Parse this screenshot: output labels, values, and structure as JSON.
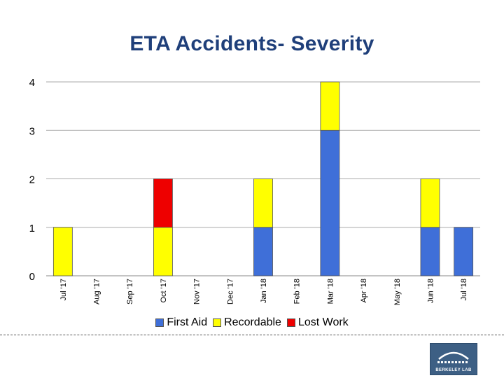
{
  "chart_data": {
    "type": "bar",
    "stacked": true,
    "title": "ETA Accidents- Severity",
    "categories": [
      "Jul '17",
      "Aug '17",
      "Sep '17",
      "Oct '17",
      "Nov '17",
      "Dec '17",
      "Jan '18",
      "Feb '18",
      "Mar '18",
      "Apr '18",
      "May '18",
      "Jun '18",
      "Jul '18"
    ],
    "series": [
      {
        "name": "First Aid",
        "color": "#3f6fd8",
        "values": [
          0,
          0,
          0,
          0,
          0,
          0,
          1,
          0,
          3,
          0,
          0,
          1,
          1
        ]
      },
      {
        "name": "Recordable",
        "color": "#ffff00",
        "values": [
          1,
          0,
          0,
          1,
          0,
          0,
          1,
          0,
          1,
          0,
          0,
          1,
          0
        ]
      },
      {
        "name": "Lost Work",
        "color": "#ee0000",
        "values": [
          0,
          0,
          0,
          1,
          0,
          0,
          0,
          0,
          0,
          0,
          0,
          0,
          0
        ]
      }
    ],
    "yticks": [
      0,
      1,
      2,
      3,
      4
    ],
    "ylim": [
      0,
      4
    ],
    "xlabel": "",
    "ylabel": "",
    "grid": true,
    "legend_position": "bottom"
  },
  "logo": {
    "text": "BERKELEY LAB"
  }
}
